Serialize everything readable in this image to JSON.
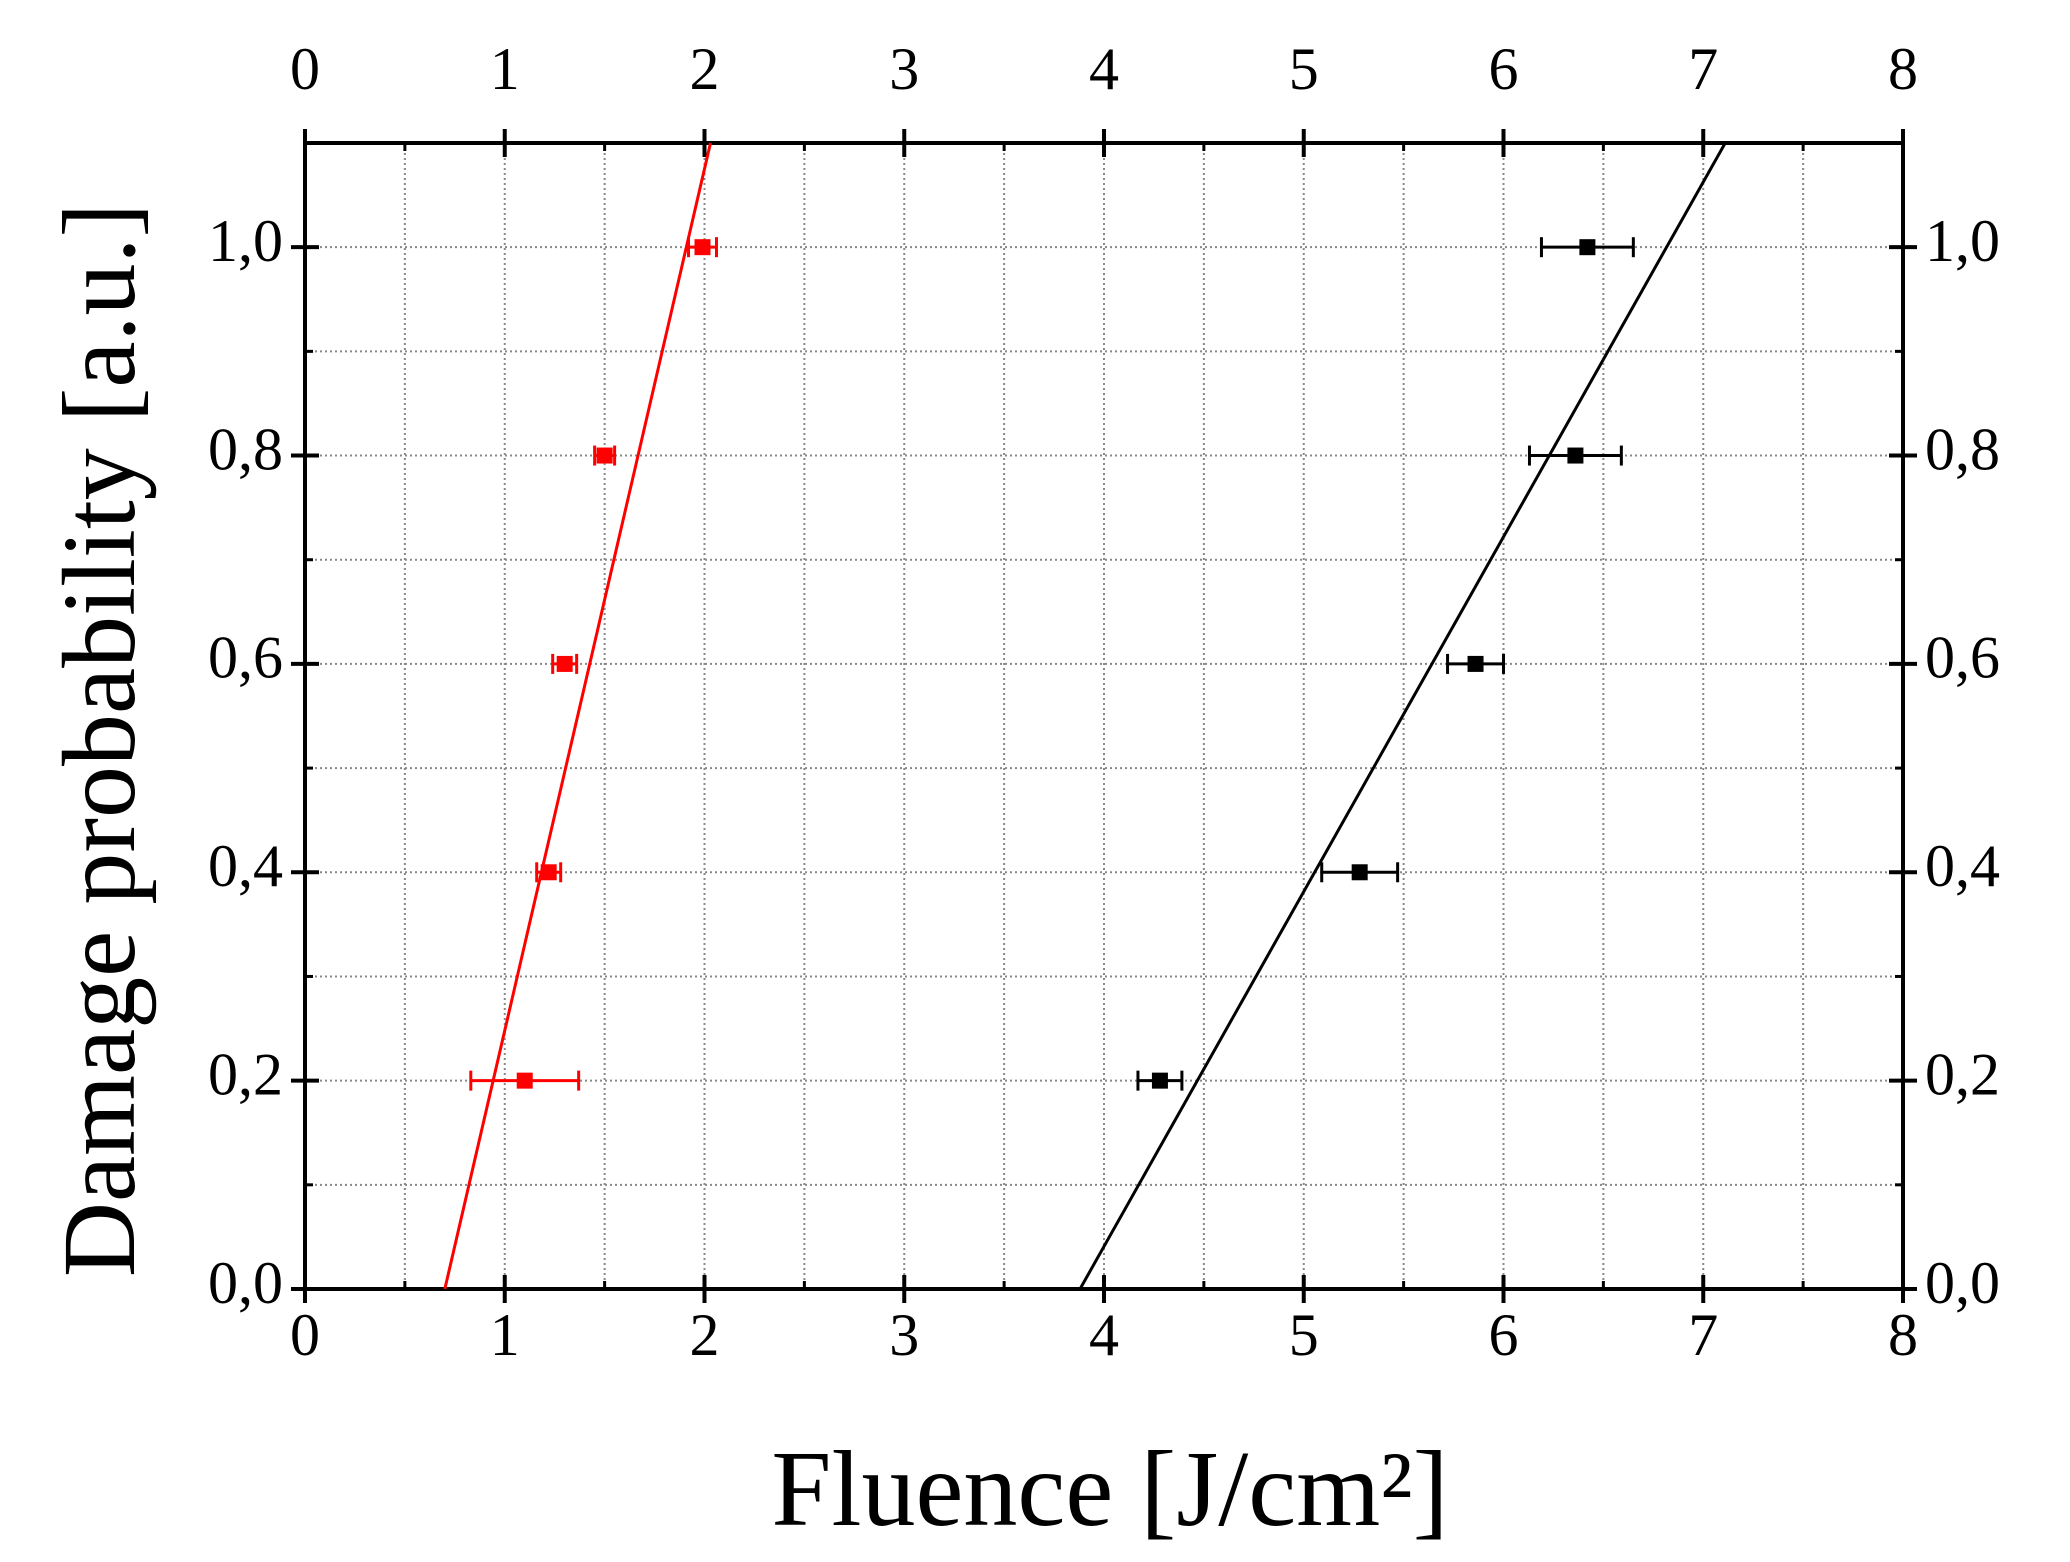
{
  "chart_data": {
    "type": "scatter",
    "x_label": "Fluence [J/cm²]",
    "y_label": "Damage probability [a.u.]",
    "xlim": [
      0,
      8
    ],
    "xticks": [
      0,
      1,
      2,
      3,
      4,
      5,
      6,
      7,
      8
    ],
    "minor_xticks": [
      0.5,
      1.5,
      2.5,
      3.5,
      4.5,
      5.5,
      6.5,
      7.5
    ],
    "ylim": [
      0,
      1.1
    ],
    "yticks": [
      {
        "value": 0,
        "label": "0,0"
      },
      {
        "value": 0.2,
        "label": "0,2"
      },
      {
        "value": 0.4,
        "label": "0,4"
      },
      {
        "value": 0.6,
        "label": "0,6"
      },
      {
        "value": 0.8,
        "label": "0,8"
      },
      {
        "value": 1.0,
        "label": "1,0"
      }
    ],
    "minor_yticks": [
      0.1,
      0.3,
      0.5,
      0.7,
      0.9
    ],
    "grid": true,
    "series": [
      {
        "color": "#ff0000",
        "x": [
          1.1,
          1.22,
          1.3,
          1.5,
          1.99
        ],
        "values": [
          0.2,
          0.4,
          0.6,
          0.8,
          1.0
        ],
        "xerr": [
          0.27,
          0.06,
          0.06,
          0.05,
          0.07
        ]
      },
      {
        "color": "#000000",
        "x": [
          4.28,
          5.28,
          5.86,
          6.36,
          6.42
        ],
        "values": [
          0.2,
          0.4,
          0.6,
          0.8,
          1.0
        ],
        "xerr": [
          0.11,
          0.19,
          0.14,
          0.23,
          0.23
        ]
      }
    ],
    "fits": [
      {
        "color": "#ff0000",
        "x": [
          0.7,
          2.03
        ],
        "values": [
          0,
          1.1
        ]
      },
      {
        "color": "#000000",
        "x": [
          3.88,
          7.11
        ],
        "values": [
          0,
          1.1
        ]
      }
    ]
  }
}
